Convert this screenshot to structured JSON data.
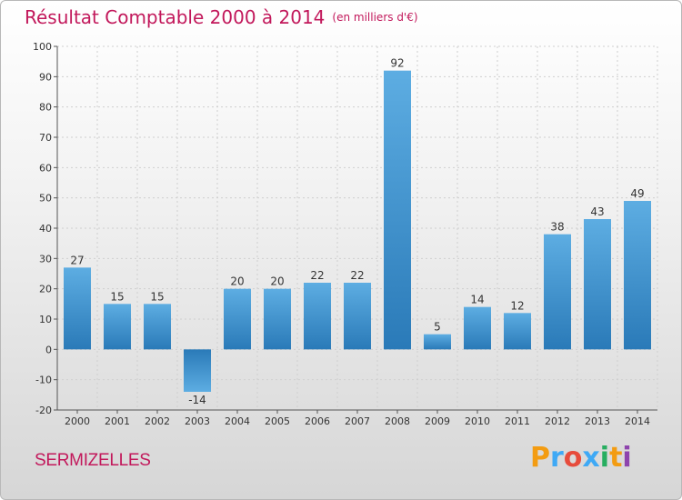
{
  "chart_data": {
    "type": "bar",
    "title": "Résultat Comptable 2000 à 2014",
    "unit_label": "(en milliers d'€)",
    "categories": [
      "2000",
      "2001",
      "2002",
      "2003",
      "2004",
      "2005",
      "2006",
      "2007",
      "2008",
      "2009",
      "2010",
      "2011",
      "2012",
      "2013",
      "2014"
    ],
    "values": [
      27,
      15,
      15,
      -14,
      20,
      20,
      22,
      22,
      92,
      5,
      14,
      12,
      38,
      43,
      49
    ],
    "value_labels": [
      "27",
      "15",
      "15",
      "-14",
      "20",
      "20",
      "22",
      "22",
      "92",
      "5",
      "14",
      "12",
      "38",
      "43",
      "49"
    ],
    "ylim": [
      -20,
      100
    ],
    "yticks": [
      -20,
      -10,
      0,
      10,
      20,
      30,
      40,
      50,
      60,
      70,
      80,
      90,
      100
    ],
    "ytick_labels": [
      "-20",
      "-10",
      "0",
      "10",
      "20",
      "30",
      "40",
      "50",
      "60",
      "70",
      "80",
      "90",
      "100"
    ],
    "grid": true,
    "xlabel": "",
    "ylabel": ""
  },
  "commune": "SERMIZELLES",
  "logo": {
    "letters": [
      "P",
      "r",
      "o",
      "x",
      "i",
      "t",
      "i"
    ],
    "colors": [
      "#f39c12",
      "#3fa9f5",
      "#e74c3c",
      "#3fa9f5",
      "#27ae60",
      "#f39c12",
      "#8e44ad"
    ]
  },
  "colors": {
    "title": "#c2185b",
    "bar_light": "#5dade2",
    "bar_dark": "#2471a3"
  }
}
